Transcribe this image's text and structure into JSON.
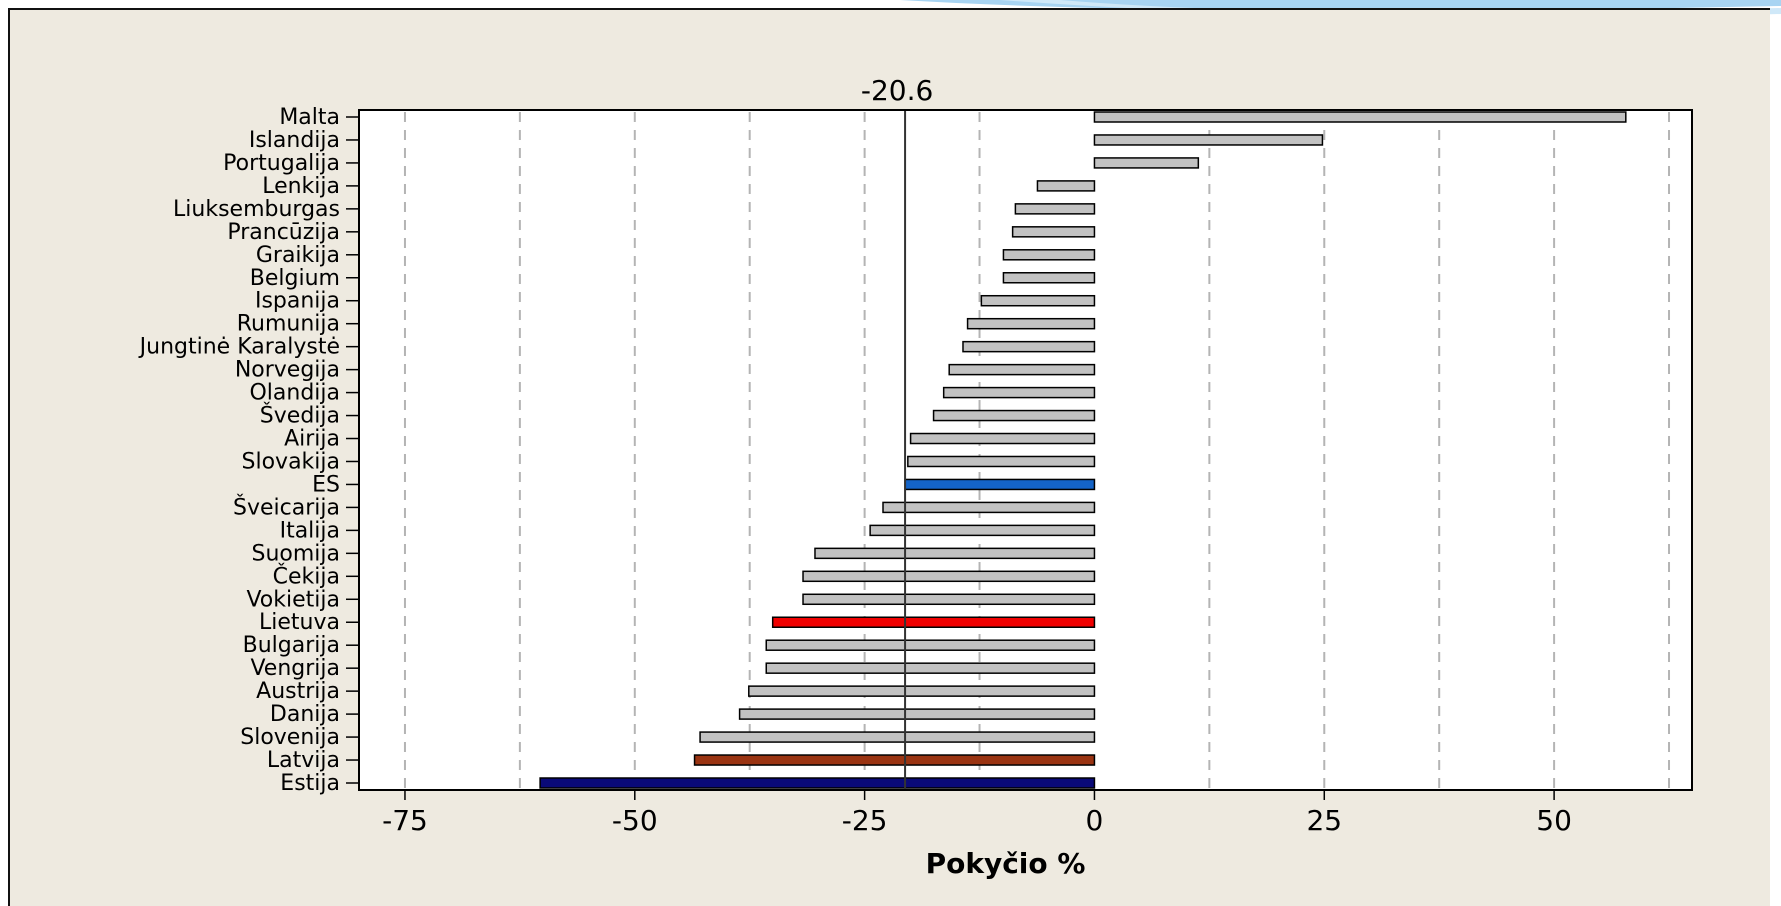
{
  "chart_data": {
    "type": "bar",
    "orientation": "horizontal",
    "title": "",
    "xlabel": "Pokyčio %",
    "ylabel": "",
    "xlim": [
      -80,
      65
    ],
    "x_ticks": [
      -75,
      -50,
      -25,
      0,
      25,
      50
    ],
    "x_tick_labels": [
      "-75",
      "-50",
      "-25",
      "0",
      "25",
      "50"
    ],
    "x_dashed_gridlines": [
      -75,
      -62.5,
      -50,
      -37.5,
      -25,
      -12.5,
      12.5,
      25,
      37.5,
      50,
      62.5
    ],
    "reference_line": {
      "value": -20.6,
      "label": "-20.6"
    },
    "grid": true,
    "legend": "none",
    "categories": [
      "Malta",
      "Islandija",
      "Portugalija",
      "Lenkija",
      "Liuksemburgas",
      "Prancūzija",
      "Graikija",
      "Belgium",
      "Ispanija",
      "Rumunija",
      "Jungtinė Karalystė",
      "Norvegija",
      "Olandija",
      "Švedija",
      "Airija",
      "Slovakija",
      "ES",
      "Šveicarija",
      "Italija",
      "Suomija",
      "Čekija",
      "Vokietija",
      "Lietuva",
      "Bulgarija",
      "Vengrija",
      "Austrija",
      "Danija",
      "Slovenija",
      "Latvija",
      "Estija"
    ],
    "values": [
      57.8,
      24.8,
      11.3,
      -6.2,
      -8.6,
      -8.9,
      -9.9,
      -9.9,
      -12.3,
      -13.8,
      -14.3,
      -15.8,
      -16.4,
      -17.5,
      -20.0,
      -20.3,
      -20.6,
      -23.0,
      -24.4,
      -30.4,
      -31.7,
      -31.7,
      -35.0,
      -35.7,
      -35.7,
      -37.6,
      -38.6,
      -42.9,
      -43.5,
      -60.3
    ],
    "bar_colors": [
      "#c2c2c2",
      "#c2c2c2",
      "#c2c2c2",
      "#c2c2c2",
      "#c2c2c2",
      "#c2c2c2",
      "#c2c2c2",
      "#c2c2c2",
      "#c2c2c2",
      "#c2c2c2",
      "#c2c2c2",
      "#c2c2c2",
      "#c2c2c2",
      "#c2c2c2",
      "#c2c2c2",
      "#c2c2c2",
      "#1464c8",
      "#c2c2c2",
      "#c2c2c2",
      "#c2c2c2",
      "#c2c2c2",
      "#c2c2c2",
      "#f00000",
      "#c2c2c2",
      "#c2c2c2",
      "#c2c2c2",
      "#c2c2c2",
      "#c2c2c2",
      "#9a3412",
      "#0a0a78"
    ]
  },
  "colors": {
    "panel_background": "#eeeae0",
    "plot_background": "#ffffff",
    "default_bar": "#c2c2c2",
    "grid_dash": "#b4b4b4",
    "slide_accent": "#a8d4f2"
  }
}
